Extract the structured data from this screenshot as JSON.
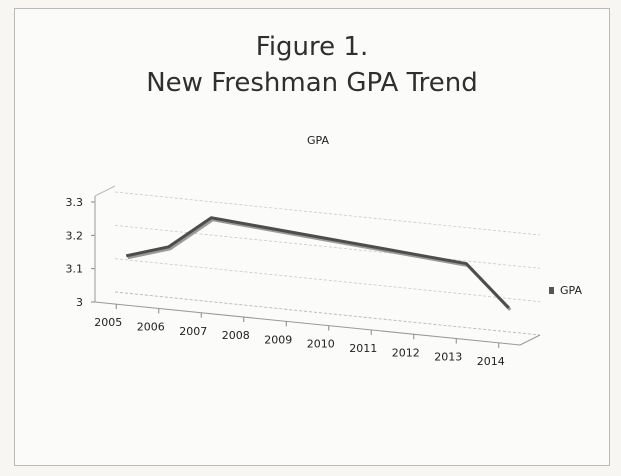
{
  "slide": {
    "title_line1": "Figure 1.",
    "title_line2": "New Freshman GPA Trend"
  },
  "chart_data": {
    "type": "line",
    "title": "GPA",
    "categories": [
      "2005",
      "2006",
      "2007",
      "2008",
      "2009",
      "2010",
      "2011",
      "2012",
      "2013",
      "2014"
    ],
    "series": [
      {
        "name": "GPA",
        "values": [
          3.13,
          3.17,
          3.27,
          3.26,
          3.25,
          3.24,
          3.23,
          3.22,
          3.21,
          3.09
        ]
      }
    ],
    "yticks": [
      "3",
      "3.1",
      "3.2",
      "3.3"
    ],
    "ylim": [
      3,
      3.3
    ],
    "grid": true,
    "legend": "right",
    "three_d": true,
    "line_color": "#4d4d4d"
  }
}
